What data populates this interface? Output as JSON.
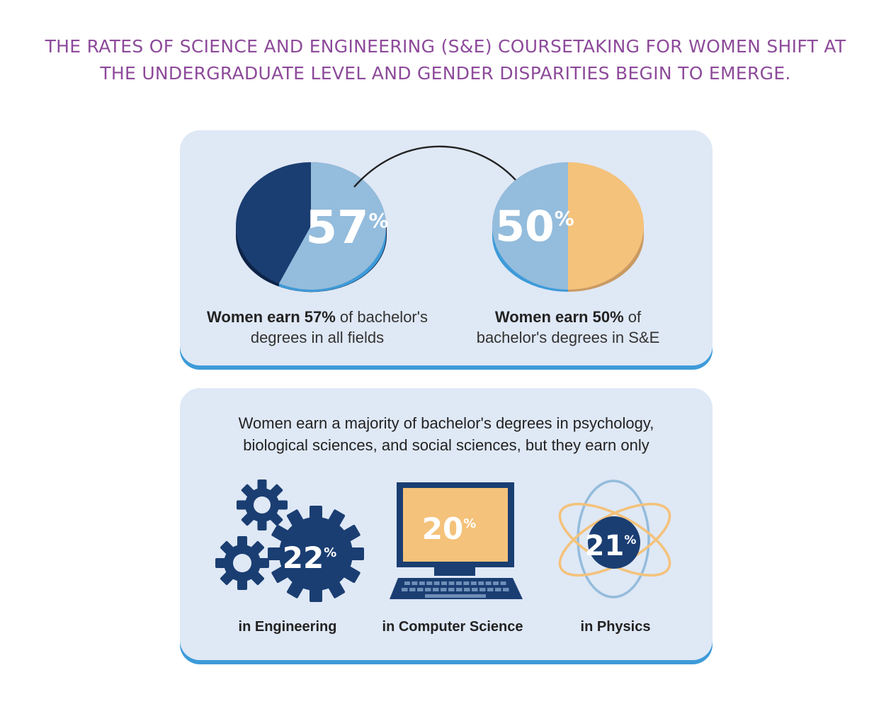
{
  "headline": {
    "line1": "THE RATES OF SCIENCE AND ENGINEERING (S&E) COURSETAKING FOR WOMEN SHIFT AT",
    "line2": "THE UNDERGRADUATE LEVEL AND GENDER DISPARITIES BEGIN TO EMERGE."
  },
  "pie_all": {
    "value": 57,
    "number": "57",
    "pct": "%",
    "caption_bold": "Women earn 57%",
    "caption_rest": " of bachelor's",
    "caption_line2": "degrees in all fields"
  },
  "pie_se": {
    "value": 50,
    "number": "50",
    "pct": "%",
    "caption_bold": "Women earn 50%",
    "caption_rest": " of",
    "caption_line2": "bachelor's degrees in S&E"
  },
  "intro": {
    "line1": "Women earn a majority of bachelor's degrees in psychology,",
    "line2": "biological sciences, and social sciences, but they earn only"
  },
  "fields": [
    {
      "number": "22",
      "pct": "%",
      "label": "in Engineering",
      "icon": "gears-icon"
    },
    {
      "number": "20",
      "pct": "%",
      "label": "in Computer Science",
      "icon": "computer-icon"
    },
    {
      "number": "21",
      "pct": "%",
      "label": "in Physics",
      "icon": "atom-icon"
    }
  ],
  "colors": {
    "headline": "#8d4a9a",
    "women": "#94bcdc",
    "men_all": "#1a3e72",
    "men_se": "#f4c27a",
    "panel": "#dfe8f5",
    "panel_edge": "#3d9bd9",
    "icon_dark": "#1a3e72",
    "screen": "#f4c27a",
    "orbit_orange": "#f4c27a",
    "orbit_blue": "#94bcdc"
  }
}
